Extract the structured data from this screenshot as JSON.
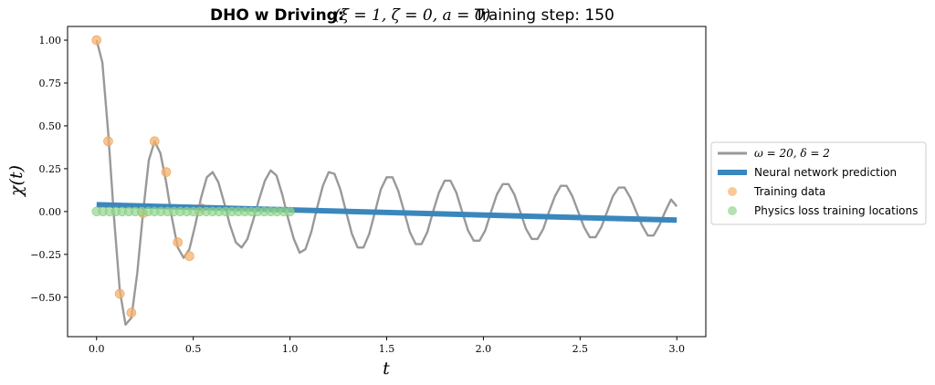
{
  "chart_data": {
    "type": "line",
    "title": {
      "bold": "DHO w Driving:",
      "math": "(ξ = 1, ζ = 0, a = 0)",
      "step_label": "Training step: 150"
    },
    "xlabel": "t",
    "ylabel": "χ(t)",
    "xlim": [
      -0.15,
      3.15
    ],
    "ylim": [
      -0.73,
      1.08
    ],
    "xticks": [
      "0.0",
      "0.5",
      "1.0",
      "1.5",
      "2.0",
      "2.5",
      "3.0"
    ],
    "yticks": [
      "1.00",
      "0.75",
      "0.50",
      "0.25",
      "0.00",
      "−0.25",
      "−0.50"
    ],
    "xtick_values": [
      0.0,
      0.5,
      1.0,
      1.5,
      2.0,
      2.5,
      3.0
    ],
    "ytick_values": [
      1.0,
      0.75,
      0.5,
      0.25,
      0.0,
      -0.25,
      -0.5
    ],
    "grid": false,
    "legend_placement": "outside-right",
    "series": [
      {
        "name": "ω = 20, δ = 2",
        "kind": "line",
        "color": "#999999",
        "x": [
          0.0,
          0.03,
          0.06,
          0.09,
          0.12,
          0.15,
          0.18,
          0.21,
          0.24,
          0.27,
          0.3,
          0.33,
          0.36,
          0.39,
          0.42,
          0.45,
          0.48,
          0.51,
          0.54,
          0.57,
          0.6,
          0.63,
          0.66,
          0.69,
          0.72,
          0.75,
          0.78,
          0.81,
          0.84,
          0.87,
          0.9,
          0.93,
          0.96,
          0.99,
          1.02,
          1.05,
          1.08,
          1.11,
          1.14,
          1.17,
          1.2,
          1.23,
          1.26,
          1.29,
          1.32,
          1.35,
          1.38,
          1.41,
          1.44,
          1.47,
          1.5,
          1.53,
          1.56,
          1.59,
          1.62,
          1.65,
          1.68,
          1.71,
          1.74,
          1.77,
          1.8,
          1.83,
          1.86,
          1.89,
          1.92,
          1.95,
          1.98,
          2.01,
          2.04,
          2.07,
          2.1,
          2.13,
          2.16,
          2.19,
          2.22,
          2.25,
          2.28,
          2.31,
          2.34,
          2.37,
          2.4,
          2.43,
          2.46,
          2.49,
          2.52,
          2.55,
          2.58,
          2.61,
          2.64,
          2.67,
          2.7,
          2.73,
          2.76,
          2.79,
          2.82,
          2.85,
          2.88,
          2.91,
          2.94,
          2.97,
          3.0
        ],
        "y": [
          1.0,
          0.87,
          0.46,
          -0.03,
          -0.46,
          -0.66,
          -0.62,
          -0.36,
          -0.01,
          0.3,
          0.41,
          0.34,
          0.17,
          -0.04,
          -0.21,
          -0.27,
          -0.22,
          -0.08,
          0.08,
          0.2,
          0.23,
          0.17,
          0.05,
          -0.08,
          -0.18,
          -0.21,
          -0.16,
          -0.05,
          0.07,
          0.18,
          0.24,
          0.21,
          0.1,
          -0.04,
          -0.16,
          -0.24,
          -0.22,
          -0.12,
          0.02,
          0.15,
          0.23,
          0.22,
          0.13,
          0.0,
          -0.13,
          -0.21,
          -0.21,
          -0.13,
          0.0,
          0.13,
          0.2,
          0.2,
          0.12,
          0.0,
          -0.12,
          -0.19,
          -0.19,
          -0.12,
          0.0,
          0.11,
          0.18,
          0.18,
          0.11,
          0.0,
          -0.11,
          -0.17,
          -0.17,
          -0.11,
          0.0,
          0.1,
          0.16,
          0.16,
          0.1,
          0.0,
          -0.1,
          -0.16,
          -0.16,
          -0.1,
          0.0,
          0.09,
          0.15,
          0.15,
          0.09,
          0.0,
          -0.09,
          -0.15,
          -0.15,
          -0.09,
          0.0,
          0.09,
          0.14,
          0.14,
          0.08,
          0.0,
          -0.08,
          -0.14,
          -0.14,
          -0.08,
          0.0,
          0.07,
          0.03
        ]
      },
      {
        "name": "Neural network prediction",
        "kind": "line",
        "color": "#3a87bd",
        "x": [
          0.0,
          3.0
        ],
        "y": [
          0.04,
          -0.05
        ]
      },
      {
        "name": "Training data",
        "kind": "scatter",
        "color": "#f6b26b",
        "x": [
          0.0,
          0.06,
          0.12,
          0.18,
          0.24,
          0.3,
          0.36,
          0.42,
          0.48,
          0.54
        ],
        "y": [
          1.0,
          0.41,
          -0.48,
          -0.59,
          -0.01,
          0.41,
          0.23,
          -0.18,
          -0.26,
          0.02
        ]
      },
      {
        "name": "Physics loss training locations",
        "kind": "scatter",
        "color": "#93d68f",
        "x": [
          0.0,
          0.033,
          0.067,
          0.1,
          0.133,
          0.167,
          0.2,
          0.233,
          0.267,
          0.3,
          0.333,
          0.367,
          0.4,
          0.433,
          0.467,
          0.5,
          0.533,
          0.567,
          0.6,
          0.633,
          0.667,
          0.7,
          0.733,
          0.767,
          0.8,
          0.833,
          0.867,
          0.9,
          0.933,
          0.967,
          1.0
        ],
        "y": [
          0,
          0,
          0,
          0,
          0,
          0,
          0,
          0,
          0,
          0,
          0,
          0,
          0,
          0,
          0,
          0,
          0,
          0,
          0,
          0,
          0,
          0,
          0,
          0,
          0,
          0,
          0,
          0,
          0,
          0,
          0
        ]
      }
    ]
  }
}
